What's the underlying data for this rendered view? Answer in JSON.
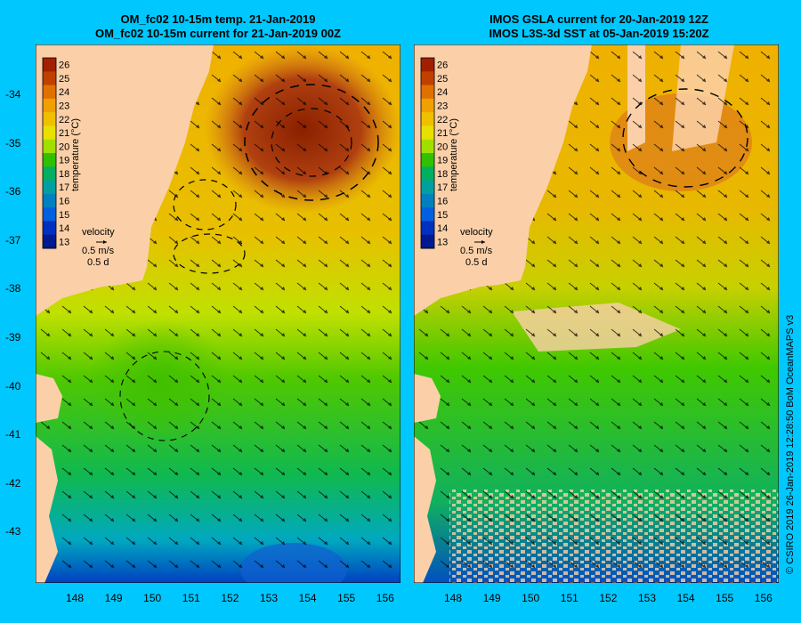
{
  "left_panel": {
    "title_line1": "OM_fc02 10-15m temp. 21-Jan-2019",
    "title_line2": "OM_fc02 10-15m current for 21-Jan-2019 00Z"
  },
  "right_panel": {
    "title_line1": "IMOS GSLA current for 20-Jan-2019 12Z",
    "title_line2": "IMOS L3S-3d SST at 05-Jan-2019 15:20Z"
  },
  "colorbar": {
    "label": "temperature (°C)",
    "ticks": [
      "26",
      "25",
      "24",
      "23",
      "22",
      "21",
      "20",
      "19",
      "18",
      "17",
      "16",
      "15",
      "14",
      "13"
    ],
    "colors": [
      "#a02000",
      "#c04000",
      "#e07000",
      "#f0a000",
      "#f0c000",
      "#e8e000",
      "#a0e000",
      "#30c000",
      "#00b060",
      "#00a0a0",
      "#0080c0",
      "#0060e0",
      "#0030c0",
      "#001890"
    ]
  },
  "velocity_key": {
    "title": "velocity",
    "speed": "0.5 m/s",
    "duration": "0.5 d"
  },
  "lat_labels": [
    "-34",
    "-35",
    "-36",
    "-37",
    "-38",
    "-39",
    "-40",
    "-41",
    "-42",
    "-43"
  ],
  "lon_labels_left": [
    "148",
    "149",
    "150",
    "151",
    "152",
    "153",
    "154",
    "155",
    "156"
  ],
  "lon_labels_right": [
    "148",
    "149",
    "150",
    "151",
    "152",
    "153",
    "154",
    "155",
    "156"
  ],
  "footer": "© CSIRO 2019   26-Jan-2019 12:28:50 BoM OceanMAPS v3",
  "colors": {
    "background": "#00c8ff",
    "land": "#fbd0a8",
    "warm_core": "#a83a14",
    "arrow": "#000000"
  }
}
